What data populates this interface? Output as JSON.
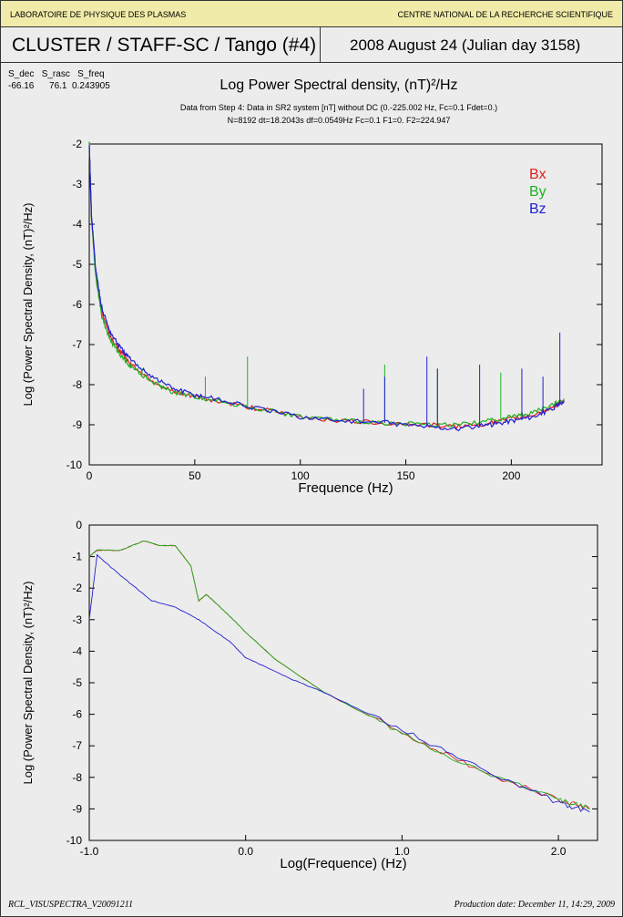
{
  "header": {
    "left": "LABORATOIRE DE PHYSIQUE DES PLASMAS",
    "right": "CENTRE NATIONAL DE LA RECHERCHE SCIENTIFIQUE"
  },
  "title": {
    "mission": "CLUSTER / STAFF-SC / Tango (#4)",
    "date": "2008 August 24  (Julian day 3158)"
  },
  "params": {
    "labels": "S_dec   S_rasc   S_freq",
    "values": "-66.16      76.1  0.243905"
  },
  "plot_title": "Log Power Spectral density, (nT)²/Hz",
  "subtitle1": "Data from Step 4: Data in SR2 system [nT] without DC (0.-225.002 Hz, Fc=0.1 Fdet=0.)",
  "subtitle2": "N=8192 dt=18.2043s df=0.0549Hz  Fc=0.1 F1=0. F2=224.947",
  "footer": {
    "left": "RCL_VISUSPECTRA_V20091211",
    "right": "Production date: December 11, 14:29, 2009"
  },
  "colors": {
    "Bx": "#e02020",
    "By": "#20b020",
    "Bz": "#2020d0"
  },
  "chart_data": [
    {
      "type": "line",
      "xlabel": "Frequence (Hz)",
      "ylabel": "Log (Power Spectral Density, (nT)²/Hz)",
      "xlim": [
        0,
        243
      ],
      "ylim": [
        -10,
        -2
      ],
      "xticks": [
        0,
        50,
        100,
        150,
        200
      ],
      "yticks": [
        -2,
        -3,
        -4,
        -5,
        -6,
        -7,
        -8,
        -9,
        -10
      ],
      "legend": [
        "Bx",
        "By",
        "Bz"
      ],
      "legend_placement": "top-right",
      "series": [
        {
          "name": "Bx",
          "x": [
            0,
            1,
            3,
            6,
            10,
            15,
            20,
            30,
            40,
            50,
            60,
            80,
            100,
            120,
            140,
            160,
            175,
            190,
            200,
            210,
            220,
            225
          ],
          "y": [
            -2,
            -3.8,
            -5.2,
            -6.2,
            -6.8,
            -7.2,
            -7.5,
            -7.9,
            -8.2,
            -8.3,
            -8.4,
            -8.6,
            -8.8,
            -8.9,
            -8.95,
            -9,
            -9.05,
            -8.95,
            -8.85,
            -8.75,
            -8.55,
            -8.4
          ]
        },
        {
          "name": "By",
          "x": [
            0,
            1,
            3,
            6,
            10,
            15,
            20,
            30,
            40,
            50,
            60,
            80,
            100,
            120,
            140,
            160,
            175,
            190,
            200,
            210,
            220,
            225
          ],
          "y": [
            -2,
            -3.8,
            -5.3,
            -6.3,
            -6.9,
            -7.3,
            -7.55,
            -7.95,
            -8.2,
            -8.3,
            -8.4,
            -8.6,
            -8.8,
            -8.9,
            -8.95,
            -9,
            -9.0,
            -8.9,
            -8.8,
            -8.7,
            -8.5,
            -8.35
          ]
        },
        {
          "name": "Bz",
          "x": [
            0,
            1,
            3,
            6,
            10,
            15,
            20,
            30,
            40,
            50,
            60,
            80,
            100,
            120,
            140,
            160,
            175,
            190,
            200,
            210,
            220,
            225
          ],
          "y": [
            -2,
            -3.7,
            -5.1,
            -6.1,
            -6.7,
            -7.1,
            -7.4,
            -7.8,
            -8.1,
            -8.25,
            -8.35,
            -8.6,
            -8.8,
            -8.9,
            -8.95,
            -9.05,
            -9.1,
            -9.0,
            -8.9,
            -8.8,
            -8.6,
            -8.4
          ]
        }
      ],
      "spikes": {
        "By": [
          [
            75,
            -7.3
          ],
          [
            140,
            -7.5
          ],
          [
            165,
            -7.6
          ],
          [
            195,
            -7.7
          ],
          [
            25,
            -7.6
          ],
          [
            55,
            -7.8
          ]
        ],
        "Bz": [
          [
            130,
            -8.1
          ],
          [
            140,
            -7.8
          ],
          [
            160,
            -7.3
          ],
          [
            165,
            -7.6
          ],
          [
            185,
            -7.5
          ],
          [
            205,
            -7.6
          ],
          [
            215,
            -7.8
          ],
          [
            223,
            -6.7
          ]
        ]
      }
    },
    {
      "type": "line",
      "xlabel": "Log(Frequence) (Hz)",
      "ylabel": "Log (Power Spectral Density, (nT)²/Hz)",
      "xlim": [
        -1.0,
        2.25
      ],
      "ylim": [
        -10,
        0
      ],
      "xticks": [
        "-1.0",
        "0.0",
        "1.0",
        "2.0"
      ],
      "yticks": [
        0,
        -1,
        -2,
        -3,
        -4,
        -5,
        -6,
        -7,
        -8,
        -9,
        -10
      ],
      "series": [
        {
          "name": "Bx",
          "x": [
            -1,
            -0.95,
            -0.8,
            -0.65,
            -0.55,
            -0.45,
            -0.35,
            -0.3,
            -0.25,
            -0.1,
            0,
            0.2,
            0.5,
            1.0,
            1.5,
            2.0,
            2.2
          ],
          "y": [
            -1.0,
            -0.8,
            -0.8,
            -0.5,
            -0.65,
            -0.65,
            -1.3,
            -2.4,
            -2.2,
            -2.9,
            -3.4,
            -4.3,
            -5.3,
            -6.6,
            -7.8,
            -8.7,
            -9.0
          ]
        },
        {
          "name": "By",
          "x": [
            -1,
            -0.95,
            -0.8,
            -0.65,
            -0.55,
            -0.45,
            -0.35,
            -0.3,
            -0.25,
            -0.1,
            0,
            0.2,
            0.5,
            1.0,
            1.5,
            2.0,
            2.2
          ],
          "y": [
            -1.0,
            -0.78,
            -0.8,
            -0.5,
            -0.65,
            -0.65,
            -1.3,
            -2.4,
            -2.2,
            -2.9,
            -3.4,
            -4.3,
            -5.3,
            -6.6,
            -7.8,
            -8.7,
            -9.0
          ]
        },
        {
          "name": "Bz",
          "x": [
            -1,
            -0.95,
            -0.8,
            -0.6,
            -0.45,
            -0.3,
            -0.1,
            0,
            0.3,
            0.5,
            1.0,
            1.5,
            2.0,
            2.2
          ],
          "y": [
            -3,
            -0.95,
            -1.6,
            -2.4,
            -2.6,
            -3.0,
            -3.7,
            -4.2,
            -4.9,
            -5.3,
            -6.5,
            -7.7,
            -8.8,
            -9.1
          ]
        }
      ]
    }
  ]
}
